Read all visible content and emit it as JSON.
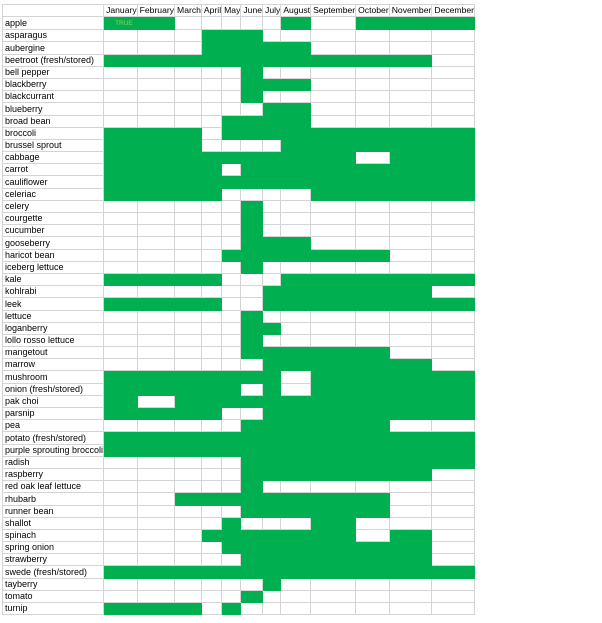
{
  "colors": {
    "in_season": "#00b050",
    "cell_text": "#92d050",
    "gridline": "#d4d4d4"
  },
  "months": [
    "January",
    "February",
    "March",
    "April",
    "May",
    "June",
    "July",
    "August",
    "September",
    "October",
    "November",
    "December"
  ],
  "rows": [
    {
      "name": "apple",
      "season": [
        1,
        1,
        0,
        0,
        0,
        0,
        0,
        1,
        0,
        1,
        1,
        1
      ],
      "cell_text": "TRUE"
    },
    {
      "name": "asparagus",
      "season": [
        0,
        0,
        0,
        1,
        1,
        1,
        0,
        0,
        0,
        0,
        0,
        0
      ]
    },
    {
      "name": "aubergine",
      "season": [
        0,
        0,
        0,
        1,
        1,
        1,
        1,
        1,
        0,
        0,
        0,
        0
      ]
    },
    {
      "name": "beetroot (fresh/stored)",
      "season": [
        1,
        1,
        1,
        1,
        1,
        1,
        1,
        1,
        1,
        1,
        1,
        0
      ]
    },
    {
      "name": "bell pepper",
      "season": [
        0,
        0,
        0,
        0,
        0,
        1,
        0,
        0,
        0,
        0,
        0,
        0
      ]
    },
    {
      "name": "blackberry",
      "season": [
        0,
        0,
        0,
        0,
        0,
        1,
        1,
        1,
        0,
        0,
        0,
        0
      ]
    },
    {
      "name": "blackcurrant",
      "season": [
        0,
        0,
        0,
        0,
        0,
        1,
        0,
        0,
        0,
        0,
        0,
        0
      ]
    },
    {
      "name": "blueberry",
      "season": [
        0,
        0,
        0,
        0,
        0,
        0,
        1,
        1,
        0,
        0,
        0,
        0
      ]
    },
    {
      "name": "broad bean",
      "season": [
        0,
        0,
        0,
        0,
        1,
        1,
        1,
        1,
        0,
        0,
        0,
        0
      ]
    },
    {
      "name": "broccoli",
      "season": [
        1,
        1,
        1,
        0,
        1,
        1,
        1,
        1,
        1,
        1,
        1,
        1
      ]
    },
    {
      "name": "brussel sprout",
      "season": [
        1,
        1,
        1,
        0,
        0,
        0,
        0,
        1,
        1,
        1,
        1,
        1
      ]
    },
    {
      "name": "cabbage",
      "season": [
        1,
        1,
        1,
        1,
        1,
        1,
        1,
        1,
        1,
        0,
        1,
        1
      ]
    },
    {
      "name": "carrot",
      "season": [
        1,
        1,
        1,
        1,
        0,
        1,
        1,
        1,
        1,
        1,
        1,
        1
      ]
    },
    {
      "name": "cauliflower",
      "season": [
        1,
        1,
        1,
        1,
        1,
        1,
        1,
        1,
        1,
        1,
        1,
        1
      ]
    },
    {
      "name": "celeriac",
      "season": [
        1,
        1,
        1,
        1,
        0,
        0,
        0,
        0,
        1,
        1,
        1,
        1
      ]
    },
    {
      "name": "celery",
      "season": [
        0,
        0,
        0,
        0,
        0,
        1,
        0,
        0,
        0,
        0,
        0,
        0
      ]
    },
    {
      "name": "courgette",
      "season": [
        0,
        0,
        0,
        0,
        0,
        1,
        0,
        0,
        0,
        0,
        0,
        0
      ]
    },
    {
      "name": "cucumber",
      "season": [
        0,
        0,
        0,
        0,
        0,
        1,
        0,
        0,
        0,
        0,
        0,
        0
      ]
    },
    {
      "name": "gooseberry",
      "season": [
        0,
        0,
        0,
        0,
        0,
        1,
        1,
        1,
        0,
        0,
        0,
        0
      ]
    },
    {
      "name": "haricot bean",
      "season": [
        0,
        0,
        0,
        0,
        1,
        1,
        1,
        1,
        1,
        1,
        0,
        0
      ]
    },
    {
      "name": "iceberg lettuce",
      "season": [
        0,
        0,
        0,
        0,
        0,
        1,
        0,
        0,
        0,
        0,
        0,
        0
      ]
    },
    {
      "name": "kale",
      "season": [
        1,
        1,
        1,
        1,
        0,
        0,
        0,
        1,
        1,
        1,
        1,
        1
      ]
    },
    {
      "name": "kohlrabi",
      "season": [
        0,
        0,
        0,
        0,
        0,
        0,
        1,
        1,
        1,
        1,
        1,
        0
      ]
    },
    {
      "name": "leek",
      "season": [
        1,
        1,
        1,
        1,
        0,
        0,
        1,
        1,
        1,
        1,
        1,
        1
      ]
    },
    {
      "name": "lettuce",
      "season": [
        0,
        0,
        0,
        0,
        0,
        1,
        0,
        0,
        0,
        0,
        0,
        0
      ]
    },
    {
      "name": "loganberry",
      "season": [
        0,
        0,
        0,
        0,
        0,
        1,
        1,
        0,
        0,
        0,
        0,
        0
      ]
    },
    {
      "name": "lollo rosso lettuce",
      "season": [
        0,
        0,
        0,
        0,
        0,
        1,
        0,
        0,
        0,
        0,
        0,
        0
      ]
    },
    {
      "name": "mangetout",
      "season": [
        0,
        0,
        0,
        0,
        0,
        1,
        1,
        1,
        1,
        1,
        0,
        0
      ]
    },
    {
      "name": "marrow",
      "season": [
        0,
        0,
        0,
        0,
        0,
        0,
        1,
        1,
        1,
        1,
        1,
        0
      ]
    },
    {
      "name": "mushroom",
      "season": [
        1,
        1,
        1,
        1,
        1,
        1,
        1,
        0,
        1,
        1,
        1,
        1
      ]
    },
    {
      "name": "onion (fresh/stored)",
      "season": [
        1,
        1,
        1,
        1,
        1,
        0,
        1,
        0,
        1,
        1,
        1,
        1
      ]
    },
    {
      "name": "pak choi",
      "season": [
        1,
        0,
        1,
        1,
        1,
        1,
        1,
        1,
        1,
        1,
        1,
        1
      ]
    },
    {
      "name": "parsnip",
      "season": [
        1,
        1,
        1,
        1,
        0,
        0,
        1,
        1,
        1,
        1,
        1,
        1
      ]
    },
    {
      "name": "pea",
      "season": [
        0,
        0,
        0,
        0,
        0,
        1,
        1,
        1,
        1,
        1,
        0,
        0
      ]
    },
    {
      "name": "potato (fresh/stored)",
      "season": [
        1,
        1,
        1,
        1,
        1,
        1,
        1,
        1,
        1,
        1,
        1,
        1
      ]
    },
    {
      "name": "purple sprouting broccoli",
      "season": [
        1,
        1,
        1,
        1,
        1,
        1,
        1,
        1,
        1,
        1,
        1,
        1
      ]
    },
    {
      "name": "radish",
      "season": [
        0,
        0,
        0,
        0,
        0,
        1,
        1,
        1,
        1,
        1,
        1,
        1
      ]
    },
    {
      "name": "raspberry",
      "season": [
        0,
        0,
        0,
        0,
        0,
        1,
        1,
        1,
        1,
        1,
        1,
        0
      ]
    },
    {
      "name": "red oak leaf lettuce",
      "season": [
        0,
        0,
        0,
        0,
        0,
        1,
        0,
        0,
        0,
        0,
        0,
        0
      ]
    },
    {
      "name": "rhubarb",
      "season": [
        0,
        0,
        1,
        1,
        1,
        1,
        1,
        1,
        1,
        1,
        0,
        0
      ]
    },
    {
      "name": "runner bean",
      "season": [
        0,
        0,
        0,
        0,
        0,
        1,
        1,
        1,
        1,
        1,
        0,
        0
      ]
    },
    {
      "name": "shallot",
      "season": [
        0,
        0,
        0,
        0,
        1,
        0,
        0,
        0,
        1,
        0,
        0,
        0
      ]
    },
    {
      "name": "spinach",
      "season": [
        0,
        0,
        0,
        1,
        1,
        1,
        1,
        1,
        1,
        0,
        1,
        0
      ]
    },
    {
      "name": "spring onion",
      "season": [
        0,
        0,
        0,
        0,
        1,
        1,
        1,
        1,
        1,
        1,
        1,
        0
      ]
    },
    {
      "name": "strawberry",
      "season": [
        0,
        0,
        0,
        0,
        0,
        1,
        1,
        1,
        1,
        1,
        1,
        0
      ]
    },
    {
      "name": "swede (fresh/stored)",
      "season": [
        1,
        1,
        1,
        1,
        1,
        1,
        1,
        1,
        1,
        1,
        1,
        1
      ]
    },
    {
      "name": "tayberry",
      "season": [
        0,
        0,
        0,
        0,
        0,
        0,
        1,
        0,
        0,
        0,
        0,
        0
      ]
    },
    {
      "name": "tomato",
      "season": [
        0,
        0,
        0,
        0,
        0,
        1,
        0,
        0,
        0,
        0,
        0,
        0
      ]
    },
    {
      "name": "turnip",
      "season": [
        1,
        1,
        1,
        0,
        1,
        0,
        0,
        0,
        0,
        0,
        0,
        0
      ]
    }
  ]
}
